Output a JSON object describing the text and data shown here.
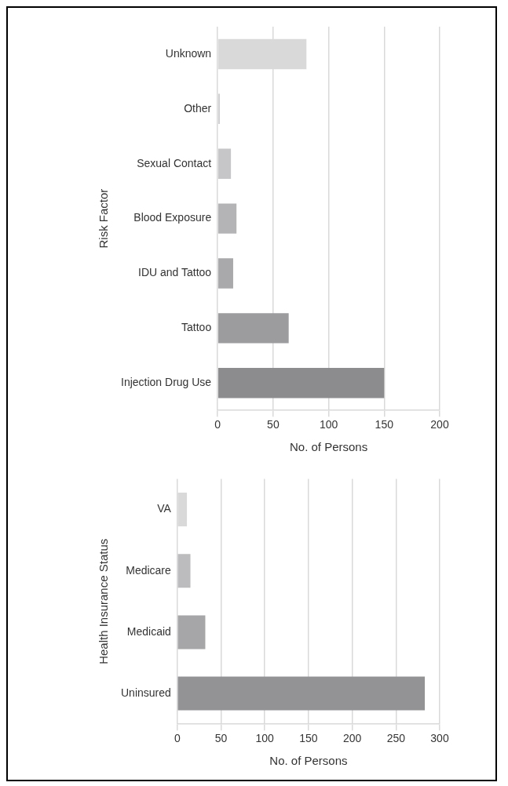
{
  "chart_data": [
    {
      "type": "bar",
      "orientation": "horizontal",
      "xlabel": "No. of Persons",
      "ylabel": "Risk Factor",
      "categories": [
        "Unknown",
        "Other",
        "Sexual Contact",
        "Blood Exposure",
        "IDU and Tattoo",
        "Tattoo",
        "Injection Drug Use"
      ],
      "values": [
        80,
        2,
        12,
        17,
        14,
        64,
        150
      ],
      "colors": [
        "#d9d9da",
        "#d0d0d2",
        "#c6c6c8",
        "#b4b4b7",
        "#a9a9ac",
        "#9c9c9f",
        "#8c8c8f"
      ],
      "xlim": [
        0,
        200
      ],
      "xticks": [
        0,
        50,
        100,
        150,
        200
      ],
      "grid": "x",
      "legend": false
    },
    {
      "type": "bar",
      "orientation": "horizontal",
      "xlabel": "No. of Persons",
      "ylabel": "Health Insurance Status",
      "categories": [
        "VA",
        "Medicare",
        "Medicaid",
        "Uninsured"
      ],
      "values": [
        11,
        15,
        32,
        283
      ],
      "colors": [
        "#d9d9da",
        "#bcbcbe",
        "#a6a6a8",
        "#939396"
      ],
      "xlim": [
        0,
        300
      ],
      "xticks": [
        0,
        50,
        100,
        150,
        200,
        250,
        300
      ],
      "grid": "x",
      "legend": false
    }
  ]
}
